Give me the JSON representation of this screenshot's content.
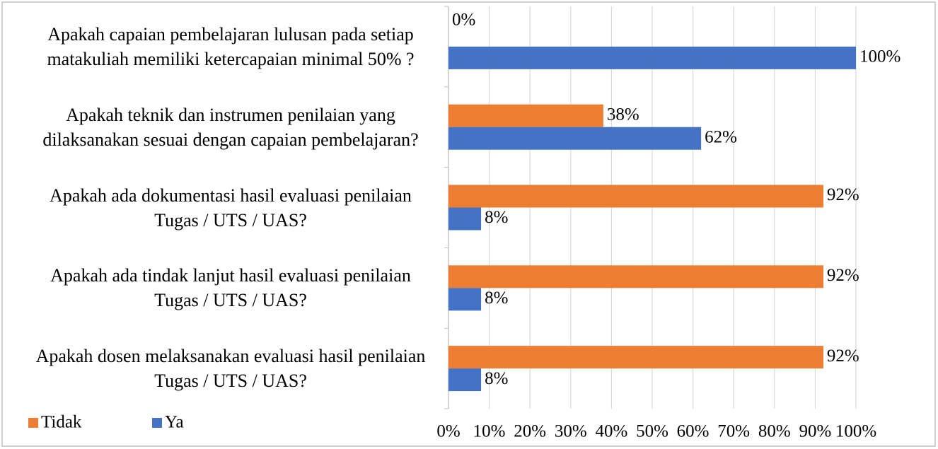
{
  "chart_data": {
    "type": "hbar",
    "categories": [
      "Apakah capaian pembelajaran lulusan pada setiap matakuliah memiliki ketercapaian minimal 50% ?",
      "Apakah teknik dan instrumen penilaian yang dilaksanakan sesuai dengan capaian pembelajaran?",
      "Apakah ada dokumentasi hasil evaluasi penilaian Tugas / UTS / UAS?",
      "Apakah ada tindak lanjut hasil evaluasi penilaian Tugas / UTS / UAS?",
      "Apakah dosen melaksanakan evaluasi hasil penilaian Tugas / UTS / UAS?"
    ],
    "series": [
      {
        "name": "Tidak",
        "color": "#ed7d31",
        "values": [
          0,
          38,
          92,
          92,
          92
        ],
        "value_labels": [
          "0%",
          "38%",
          "92%",
          "92%",
          "92%"
        ]
      },
      {
        "name": "Ya",
        "color": "#4472c4",
        "values": [
          100,
          62,
          8,
          8,
          8
        ],
        "value_labels": [
          "100%",
          "62%",
          "8%",
          "8%",
          "8%"
        ]
      }
    ],
    "xlim": [
      0,
      100
    ],
    "xticks": [
      {
        "value": 0,
        "label": "0%"
      },
      {
        "value": 10,
        "label": "10%"
      },
      {
        "value": 20,
        "label": "20%"
      },
      {
        "value": 30,
        "label": "30%"
      },
      {
        "value": 40,
        "label": "40%"
      },
      {
        "value": 50,
        "label": "50%"
      },
      {
        "value": 60,
        "label": "60%"
      },
      {
        "value": 70,
        "label": "70%"
      },
      {
        "value": 80,
        "label": "80%"
      },
      {
        "value": 90,
        "label": "90%"
      },
      {
        "value": 100,
        "label": "100%"
      }
    ],
    "grid": true,
    "legend": "bottom-left"
  }
}
